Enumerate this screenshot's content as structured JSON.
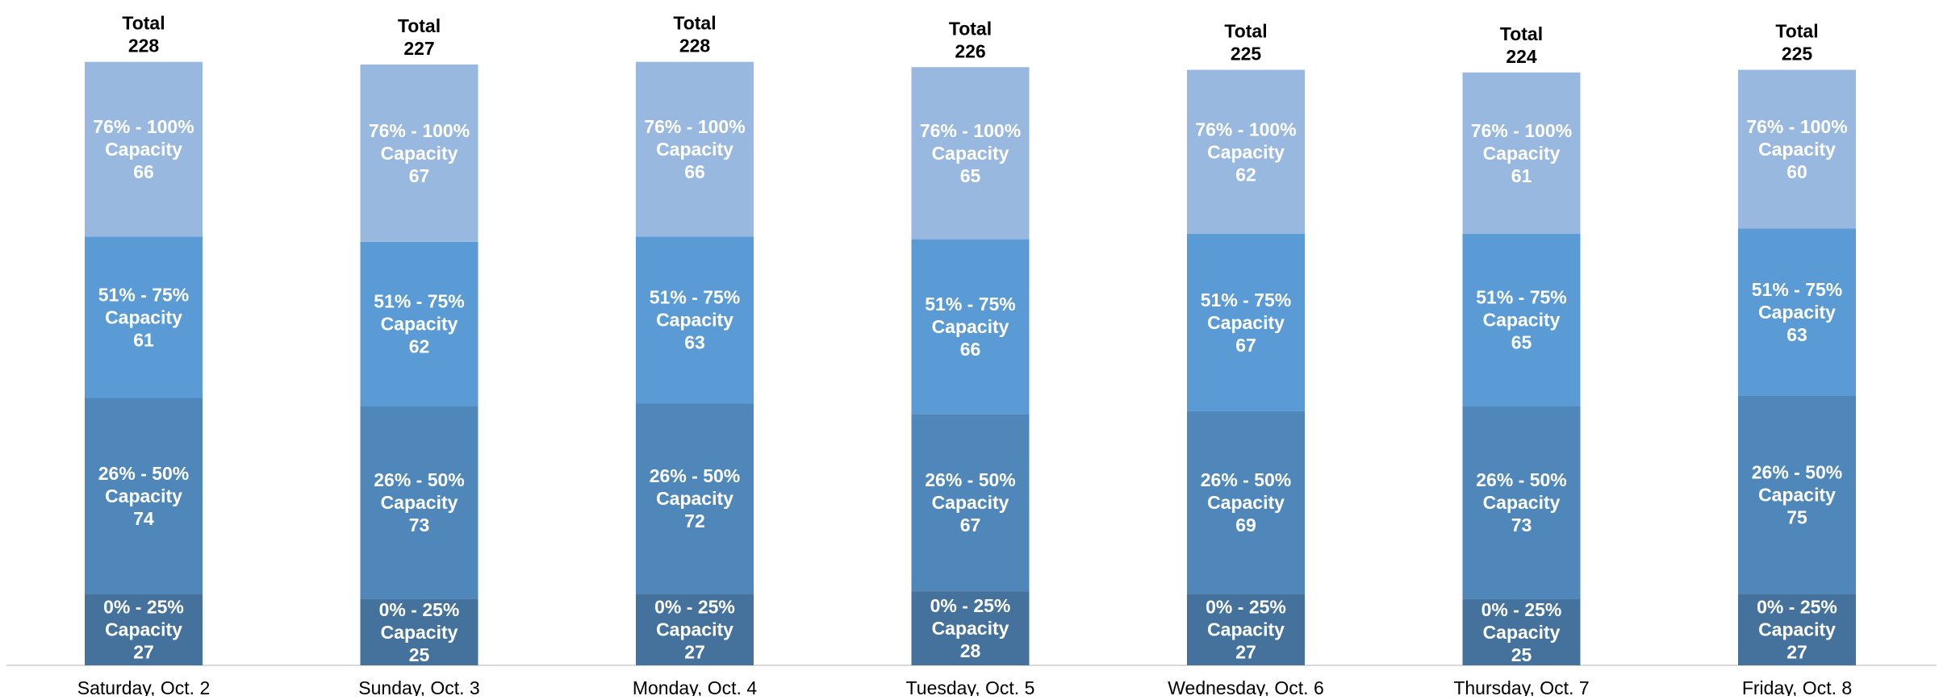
{
  "chart_data": {
    "type": "bar",
    "stacked": true,
    "title": "",
    "xlabel": "",
    "ylabel": "",
    "ylim": [
      0,
      228
    ],
    "grid": false,
    "legend": "none",
    "categories": [
      "Saturday, Oct. 2",
      "Sunday, Oct. 3",
      "Monday, Oct. 4",
      "Tuesday, Oct. 5",
      "Wednesday, Oct. 6",
      "Thursday, Oct. 7",
      "Friday, Oct. 8"
    ],
    "total_label": "Total",
    "totals": [
      228,
      227,
      228,
      226,
      225,
      224,
      225
    ],
    "series": [
      {
        "name": "0% - 25% Capacity",
        "label_lines": [
          "0% - 25%",
          "Capacity"
        ],
        "color": "#44729d",
        "values": [
          27,
          25,
          27,
          28,
          27,
          25,
          27
        ]
      },
      {
        "name": "26% - 50% Capacity",
        "label_lines": [
          "26% - 50%",
          "Capacity"
        ],
        "color": "#4f87bb",
        "values": [
          74,
          73,
          72,
          67,
          69,
          73,
          75
        ]
      },
      {
        "name": "51% - 75% Capacity",
        "label_lines": [
          "51% - 75%",
          "Capacity"
        ],
        "color": "#5a9bd5",
        "values": [
          61,
          62,
          63,
          66,
          67,
          65,
          63
        ]
      },
      {
        "name": "76% - 100% Capacity",
        "label_lines": [
          "76% - 100%",
          "Capacity"
        ],
        "color": "#98b8e0",
        "values": [
          66,
          67,
          66,
          65,
          62,
          61,
          60
        ]
      }
    ]
  }
}
